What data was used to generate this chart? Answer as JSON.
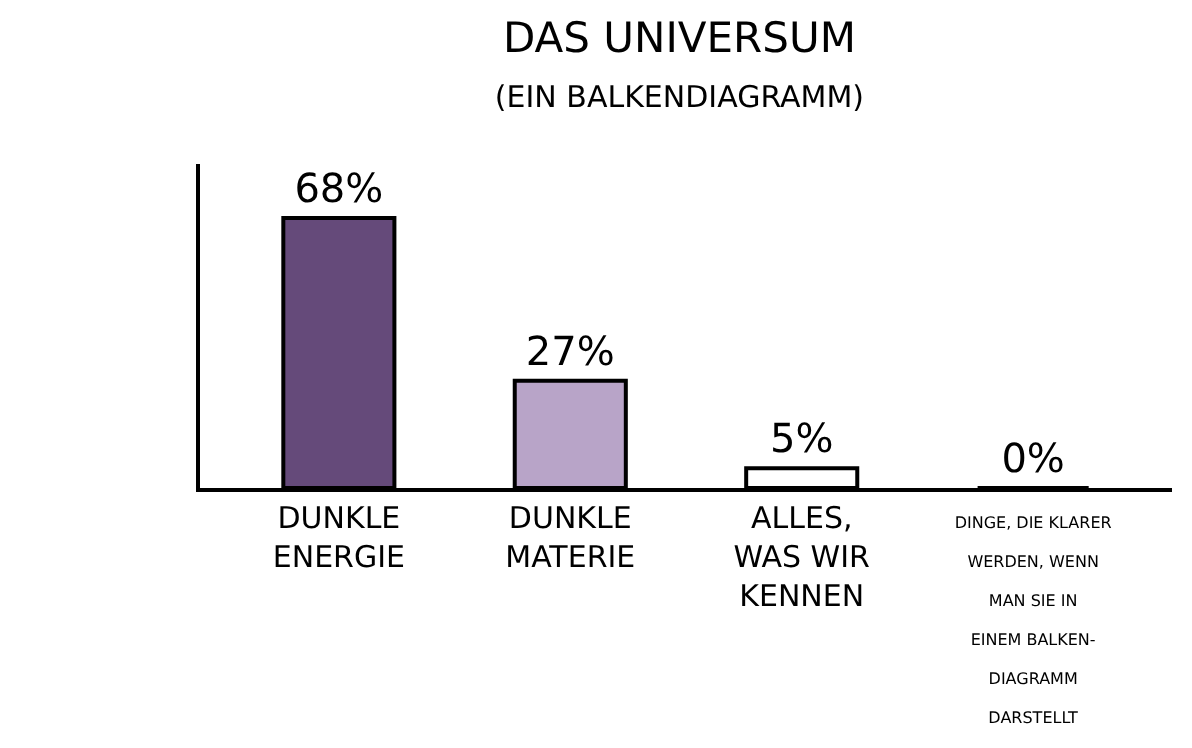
{
  "chart_data": {
    "type": "bar",
    "title": "DAS UNIVERSUM",
    "subtitle": "(EIN BALKENDIAGRAMM)",
    "categories": [
      "DUNKLE\nENERGIE",
      "DUNKLE\nMATERIE",
      "ALLES,\nWAS WIR\nKENNEN",
      "DINGE, DIE KLARER\nWERDEN, WENN\nMAN SIE IN\nEINEM BALKEN-\nDIAGRAMM\nDARSTELLT"
    ],
    "values": [
      68,
      27,
      5,
      0
    ],
    "colors": [
      "#654a7a",
      "#b8a4c8",
      "#ffffff",
      "#ffffff"
    ],
    "value_labels": [
      "68%",
      "27%",
      "5%",
      "0%"
    ],
    "legend": false
  }
}
